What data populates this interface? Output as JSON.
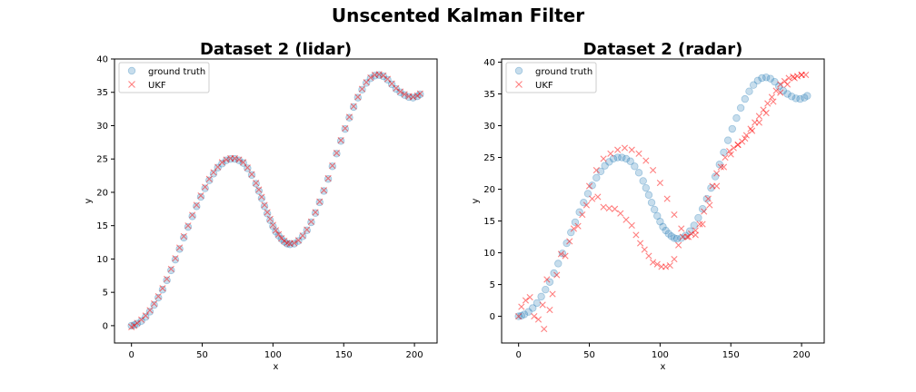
{
  "figure": {
    "suptitle": "Unscented Kalman Filter"
  },
  "chart_data": [
    {
      "type": "scatter",
      "title": "Dataset 2 (lidar)",
      "xlabel": "x",
      "ylabel": "y",
      "xlim": [
        -12,
        216
      ],
      "ylim": [
        -2.6,
        40
      ],
      "xticks": [
        0,
        50,
        100,
        150,
        200
      ],
      "yticks": [
        0,
        5,
        10,
        15,
        20,
        25,
        30,
        35,
        40
      ],
      "grid": false,
      "legend": "top-left",
      "series": [
        {
          "name": "ground truth",
          "marker": "circle",
          "color": "#1f77b4",
          "x": [
            0,
            2,
            4,
            7,
            10,
            13,
            16,
            19,
            22,
            25,
            28,
            31,
            34,
            37,
            40,
            43,
            46,
            49,
            52,
            55,
            58,
            61,
            64,
            67,
            70,
            73,
            76,
            79,
            82,
            85,
            88,
            90,
            92,
            94,
            96,
            98,
            100,
            102,
            104,
            106,
            108,
            110,
            112,
            115,
            118,
            121,
            124,
            127,
            130,
            133,
            136,
            139,
            142,
            145,
            148,
            151,
            154,
            157,
            160,
            163,
            166,
            169,
            172,
            175,
            178,
            181,
            184,
            187,
            190,
            193,
            196,
            199,
            202,
            204
          ],
          "y": [
            0.0,
            0.1,
            0.3,
            0.7,
            1.3,
            2.1,
            3.1,
            4.2,
            5.4,
            6.8,
            8.3,
            9.9,
            11.5,
            13.2,
            14.8,
            16.4,
            17.9,
            19.3,
            20.6,
            21.8,
            22.8,
            23.7,
            24.3,
            24.8,
            25.0,
            25.0,
            24.8,
            24.4,
            23.6,
            22.6,
            21.3,
            20.2,
            19.1,
            17.9,
            16.8,
            15.8,
            14.9,
            14.1,
            13.5,
            13.0,
            12.6,
            12.3,
            12.2,
            12.3,
            12.7,
            13.4,
            14.3,
            15.5,
            16.9,
            18.5,
            20.2,
            22.0,
            23.9,
            25.8,
            27.7,
            29.5,
            31.2,
            32.8,
            34.2,
            35.4,
            36.4,
            37.1,
            37.5,
            37.6,
            37.4,
            36.9,
            36.2,
            35.5,
            35.0,
            34.6,
            34.3,
            34.2,
            34.4,
            34.7
          ]
        },
        {
          "name": "UKF",
          "marker": "x",
          "color": "#ff0000",
          "x": [
            0,
            2,
            4,
            7,
            10,
            13,
            16,
            19,
            22,
            25,
            28,
            31,
            34,
            37,
            40,
            43,
            46,
            49,
            52,
            55,
            58,
            61,
            64,
            67,
            70,
            73,
            76,
            79,
            82,
            85,
            88,
            90,
            92,
            94,
            96,
            98,
            100,
            102,
            104,
            106,
            108,
            110,
            112,
            115,
            118,
            121,
            124,
            127,
            130,
            133,
            136,
            139,
            142,
            145,
            148,
            151,
            154,
            157,
            160,
            163,
            166,
            169,
            172,
            175,
            178,
            181,
            184,
            187,
            190,
            193,
            196,
            199,
            202,
            204
          ],
          "y": [
            -0.2,
            0.0,
            0.4,
            0.9,
            1.5,
            2.3,
            3.3,
            4.4,
            5.6,
            7.0,
            8.5,
            10.1,
            11.7,
            13.4,
            15.0,
            16.6,
            18.1,
            19.5,
            20.8,
            22.0,
            23.0,
            23.8,
            24.5,
            24.9,
            25.1,
            25.1,
            24.9,
            24.5,
            23.7,
            22.7,
            21.4,
            20.4,
            19.3,
            18.1,
            17.0,
            16.0,
            15.1,
            14.3,
            13.7,
            13.1,
            12.7,
            12.4,
            12.3,
            12.4,
            12.8,
            13.5,
            14.4,
            15.6,
            17.0,
            18.6,
            20.3,
            22.1,
            24.0,
            25.9,
            27.8,
            29.6,
            31.3,
            32.9,
            34.3,
            35.5,
            36.5,
            37.2,
            37.6,
            37.7,
            37.5,
            37.0,
            36.3,
            35.6,
            35.1,
            34.7,
            34.4,
            34.3,
            34.5,
            34.8
          ]
        }
      ]
    },
    {
      "type": "scatter",
      "title": "Dataset 2 (radar)",
      "xlabel": "x",
      "ylabel": "y",
      "xlim": [
        -12,
        216
      ],
      "ylim": [
        -4.2,
        40.5
      ],
      "xticks": [
        0,
        50,
        100,
        150,
        200
      ],
      "yticks": [
        0,
        5,
        10,
        15,
        20,
        25,
        30,
        35,
        40
      ],
      "grid": false,
      "legend": "top-left",
      "series": [
        {
          "name": "ground truth",
          "marker": "circle",
          "color": "#1f77b4",
          "x": [
            0,
            2,
            4,
            7,
            10,
            13,
            16,
            19,
            22,
            25,
            28,
            31,
            34,
            37,
            40,
            43,
            46,
            49,
            52,
            55,
            58,
            61,
            64,
            67,
            70,
            73,
            76,
            79,
            82,
            85,
            88,
            90,
            92,
            94,
            96,
            98,
            100,
            102,
            104,
            106,
            108,
            110,
            112,
            115,
            118,
            121,
            124,
            127,
            130,
            133,
            136,
            139,
            142,
            145,
            148,
            151,
            154,
            157,
            160,
            163,
            166,
            169,
            172,
            175,
            178,
            181,
            184,
            187,
            190,
            193,
            196,
            199,
            202,
            204
          ],
          "y": [
            0.0,
            0.1,
            0.3,
            0.7,
            1.3,
            2.1,
            3.1,
            4.2,
            5.4,
            6.8,
            8.3,
            9.9,
            11.5,
            13.2,
            14.8,
            16.4,
            17.9,
            19.3,
            20.6,
            21.8,
            22.8,
            23.7,
            24.3,
            24.8,
            25.0,
            25.0,
            24.8,
            24.4,
            23.6,
            22.6,
            21.3,
            20.2,
            19.1,
            17.9,
            16.8,
            15.8,
            14.9,
            14.1,
            13.5,
            13.0,
            12.6,
            12.3,
            12.2,
            12.3,
            12.7,
            13.4,
            14.3,
            15.5,
            16.9,
            18.5,
            20.2,
            22.0,
            23.9,
            25.8,
            27.7,
            29.5,
            31.2,
            32.8,
            34.2,
            35.4,
            36.4,
            37.1,
            37.5,
            37.6,
            37.4,
            36.9,
            36.2,
            35.5,
            35.0,
            34.6,
            34.3,
            34.2,
            34.4,
            34.7
          ]
        },
        {
          "name": "UKF",
          "marker": "x",
          "color": "#ff0000",
          "x": [
            0,
            2,
            5,
            8,
            11,
            14,
            17,
            18,
            20,
            22,
            24,
            27,
            30,
            33,
            36,
            39,
            42,
            45,
            48,
            52,
            56,
            60,
            64,
            68,
            72,
            76,
            80,
            83,
            86,
            89,
            92,
            95,
            98,
            101,
            104,
            107,
            110,
            113,
            116,
            119,
            122,
            125,
            128,
            131,
            134,
            137,
            140,
            143,
            146,
            149,
            152,
            155,
            158,
            161,
            164,
            167,
            170,
            173,
            176,
            179,
            182,
            185,
            188,
            191,
            194,
            197,
            200,
            203,
            50,
            55,
            60,
            65,
            70,
            75,
            80,
            85,
            90,
            95,
            100,
            105,
            110,
            115,
            120,
            125,
            130,
            135,
            140,
            145,
            150,
            155,
            160,
            165,
            170,
            175,
            180,
            185,
            190,
            195,
            200
          ],
          "y": [
            0.0,
            1.5,
            2.5,
            3.0,
            0.0,
            -0.5,
            1.8,
            -2.0,
            5.8,
            1.0,
            3.5,
            6.5,
            9.8,
            9.5,
            11.8,
            13.8,
            14.2,
            16.0,
            17.5,
            18.5,
            18.8,
            17.2,
            17.0,
            16.9,
            16.2,
            15.2,
            14.3,
            12.8,
            11.5,
            10.5,
            9.5,
            8.5,
            8.2,
            7.8,
            7.8,
            8.0,
            9.0,
            11.2,
            12.5,
            12.5,
            13.0,
            13.5,
            14.5,
            16.5,
            18.5,
            20.5,
            22.5,
            23.5,
            25.0,
            26.0,
            26.5,
            27.0,
            27.5,
            28.5,
            29.5,
            30.5,
            31.5,
            32.5,
            33.5,
            34.5,
            35.5,
            36.5,
            37.0,
            37.5,
            37.7,
            37.8,
            38.0,
            38.0,
            20.5,
            23.0,
            24.8,
            25.6,
            26.2,
            26.5,
            26.2,
            25.6,
            24.5,
            23.0,
            21.0,
            18.5,
            16.0,
            13.8,
            12.5,
            12.8,
            14.5,
            17.5,
            20.5,
            23.5,
            25.5,
            27.0,
            28.0,
            29.2,
            30.5,
            32.0,
            33.8,
            35.2,
            36.5,
            37.5,
            38.0
          ]
        }
      ]
    }
  ]
}
